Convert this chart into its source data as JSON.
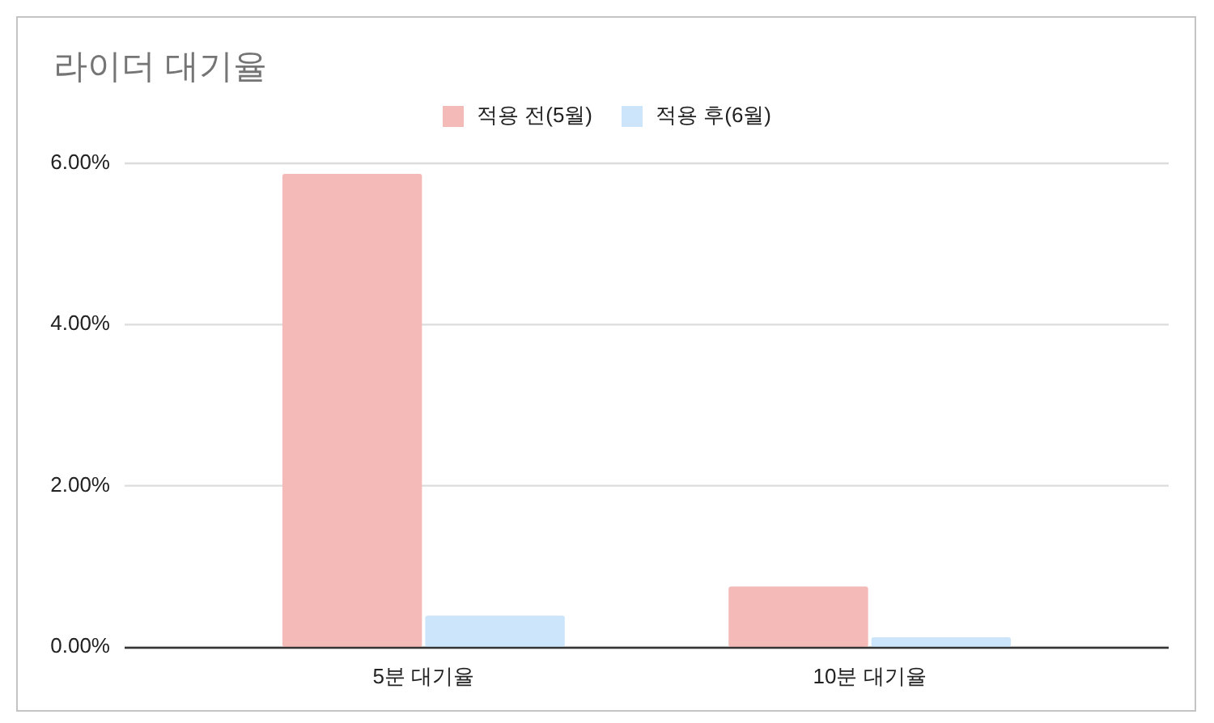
{
  "chart_data": {
    "type": "bar",
    "title": "라이더 대기율",
    "categories": [
      "5분 대기율",
      "10분 대기율"
    ],
    "series": [
      {
        "name": "적용 전(5월)",
        "color": "#f3bab7",
        "values": [
          5.87,
          0.75
        ]
      },
      {
        "name": "적용 후(6월)",
        "color": "#cce5fb",
        "values": [
          0.39,
          0.12
        ]
      }
    ],
    "ylim": [
      0,
      6
    ],
    "yticks": [
      {
        "value": 0,
        "label": "0.00%"
      },
      {
        "value": 2,
        "label": "2.00%"
      },
      {
        "value": 4,
        "label": "4.00%"
      },
      {
        "value": 6,
        "label": "6.00%"
      }
    ],
    "grid": "y",
    "legend": "top"
  }
}
